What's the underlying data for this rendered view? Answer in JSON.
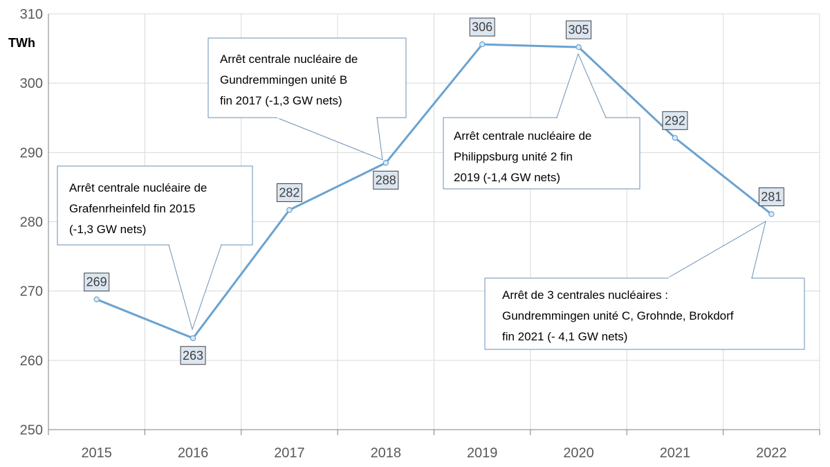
{
  "chart_data": {
    "type": "line",
    "unit_label": "TWh",
    "categories": [
      "2015",
      "2016",
      "2017",
      "2018",
      "2019",
      "2020",
      "2021",
      "2022"
    ],
    "values": [
      269,
      263,
      282,
      288,
      306,
      305,
      292,
      281
    ],
    "plotted_values": [
      268.8,
      263.2,
      281.7,
      288.5,
      305.6,
      305.2,
      292.1,
      281.1
    ],
    "ylim": [
      250,
      310
    ],
    "yticks": [
      250,
      260,
      270,
      280,
      290,
      300,
      310
    ],
    "grid": true,
    "series_color": "#6aa2d0",
    "annotations": [
      {
        "target_year": "2016",
        "lines": [
          "Arrêt centrale nucléaire de",
          "Grafenrheinfeld fin 2015",
          "(-1,3 GW nets)"
        ]
      },
      {
        "target_year": "2018",
        "lines": [
          "Arrêt centrale nucléaire de",
          "Gundremmingen unité B",
          "fin 2017 (-1,3 GW nets)"
        ]
      },
      {
        "target_year": "2020",
        "lines": [
          "Arrêt centrale nucléaire de",
          "Philippsburg unité 2 fin",
          "2019 (-1,4 GW nets)"
        ]
      },
      {
        "target_year": "2022",
        "lines": [
          "Arrêt de 3 centrales nucléaires :",
          "Gundremmingen unité C, Grohnde, Brokdorf",
          "fin 2021 (- 4,1 GW nets)"
        ]
      }
    ]
  }
}
